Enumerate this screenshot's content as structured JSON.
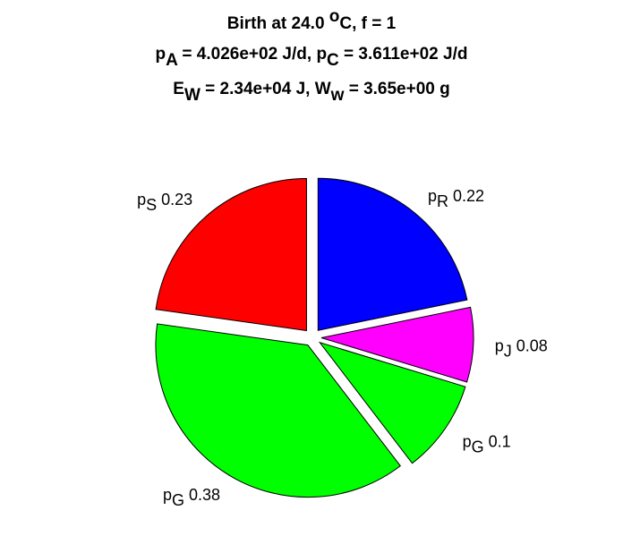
{
  "chart_data": {
    "type": "pie",
    "title": [
      [
        {
          "text": "Birth at 24.0 "
        },
        {
          "text": "o",
          "script": "sup"
        },
        {
          "text": "C, f = 1"
        }
      ],
      [
        {
          "text": "p"
        },
        {
          "text": "A",
          "script": "sub"
        },
        {
          "text": " = 4.026e+02 J/d, p"
        },
        {
          "text": "C",
          "script": "sub"
        },
        {
          "text": " = 3.611e+02 J/d"
        }
      ],
      [
        {
          "text": "E"
        },
        {
          "text": "W",
          "script": "sub"
        },
        {
          "text": " = 2.34e+04 J, W"
        },
        {
          "text": "w",
          "script": "sub"
        },
        {
          "text": " = 3.65e+00 g"
        }
      ]
    ],
    "slices": [
      {
        "symbol": "p",
        "sub": "R",
        "value": 0.22,
        "color": "#0000ff"
      },
      {
        "symbol": "p",
        "sub": "J",
        "value": 0.08,
        "color": "#ff00ff"
      },
      {
        "symbol": "p",
        "sub": "G",
        "value": 0.1,
        "color": "#00ff00"
      },
      {
        "symbol": "p",
        "sub": "G",
        "value": 0.38,
        "color": "#00ff00"
      },
      {
        "symbol": "p",
        "sub": "S",
        "value": 0.23,
        "color": "#ff0000"
      }
    ],
    "start": "top",
    "direction": "clockwise",
    "exploded": true
  }
}
